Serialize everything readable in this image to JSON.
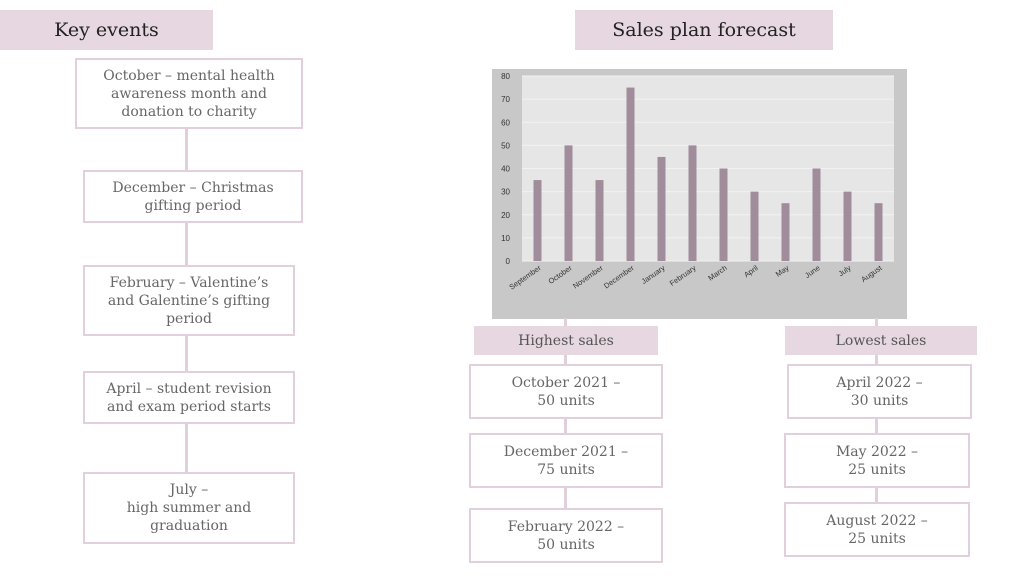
{
  "left": {
    "title": "Key events",
    "events": [
      "October – mental health\nawareness month and\ndonation to charity",
      "December – Christmas\ngifting period",
      "February – Valentine’s\nand Galentine’s gifting\nperiod",
      "April – student revision\nand exam period starts",
      "July –\nhigh summer and\ngraduation"
    ]
  },
  "right": {
    "title": "Sales plan forecast",
    "highest": {
      "label": "Highest sales",
      "items": [
        "October 2021 –\n50 units",
        "December 2021 –\n75 units",
        "February 2022  –\n50 units"
      ]
    },
    "lowest": {
      "label": "Lowest sales",
      "items": [
        "April 2022 –\n30 units",
        "May 2022 –\n25 units",
        "August 2022 –\n25 units"
      ]
    }
  },
  "chart_data": {
    "type": "bar",
    "categories": [
      "September",
      "October",
      "November",
      "December",
      "January",
      "February",
      "March",
      "April",
      "May",
      "June",
      "July",
      "August"
    ],
    "values": [
      35,
      50,
      35,
      75,
      45,
      50,
      40,
      30,
      25,
      40,
      30,
      25
    ],
    "ylim": [
      0,
      80
    ],
    "yticks": [
      0,
      10,
      20,
      30,
      40,
      50,
      60,
      70,
      80
    ],
    "grid": true,
    "bar_color": "#a08c9a",
    "title": "",
    "xlabel": "",
    "ylabel": ""
  }
}
